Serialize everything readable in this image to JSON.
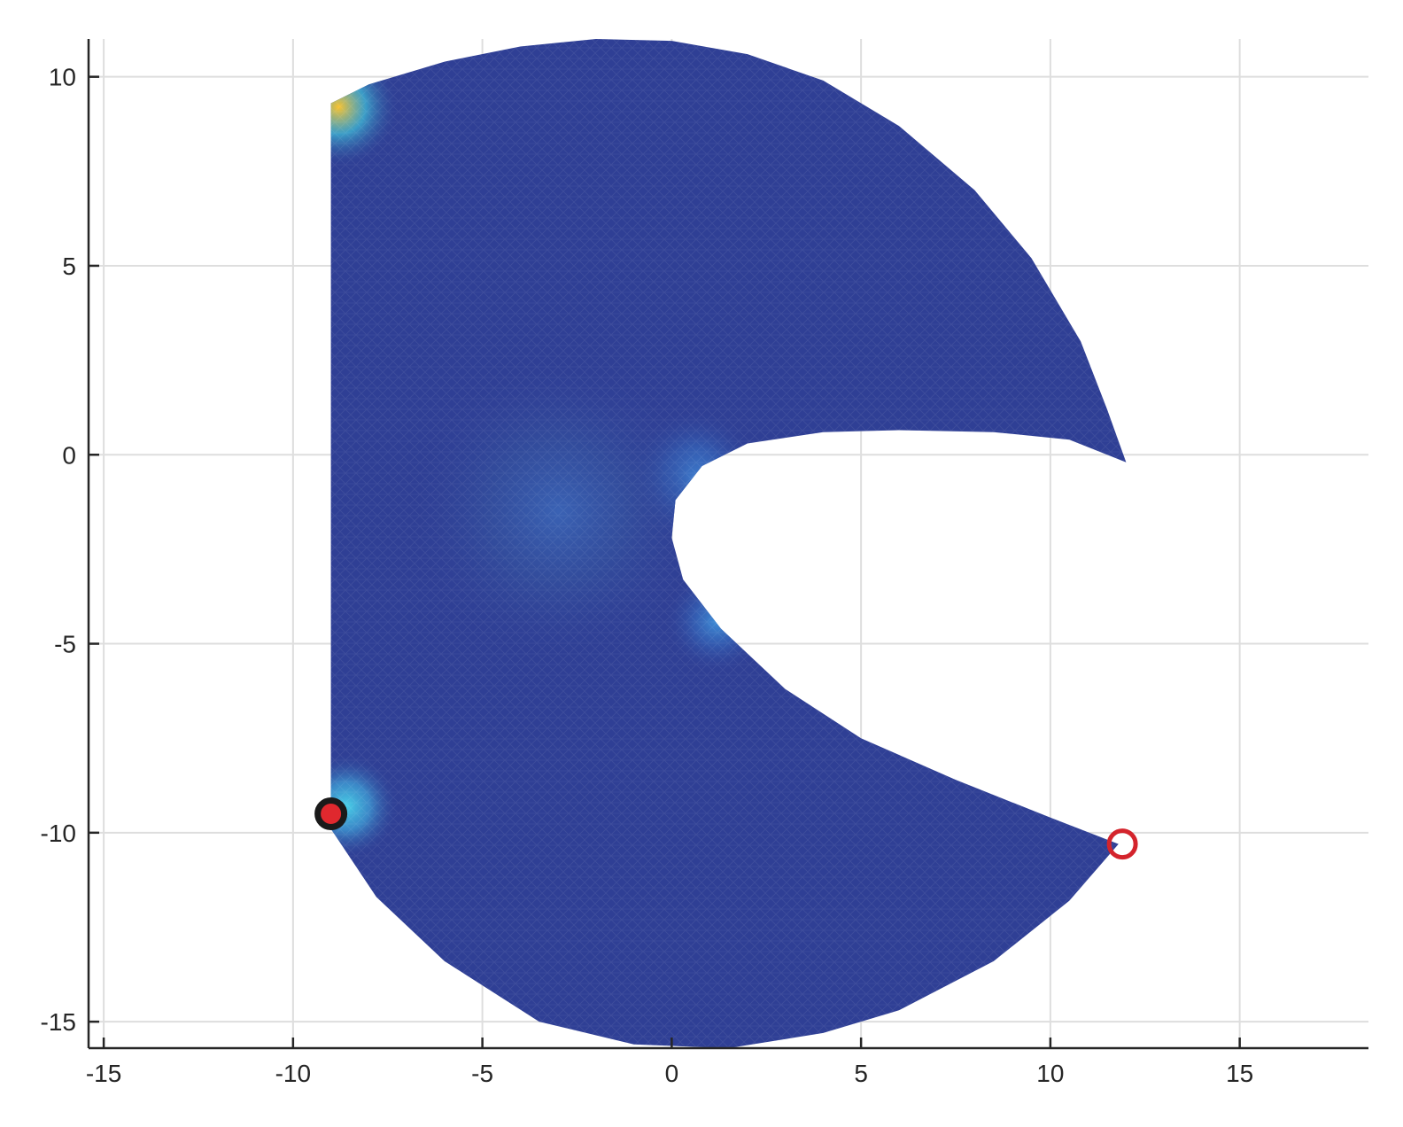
{
  "chart_data": {
    "type": "scatter",
    "title": "",
    "xlabel": "",
    "ylabel": "",
    "xlim": [
      -15.4,
      18.4
    ],
    "ylim": [
      -15.7,
      11.0
    ],
    "grid": true,
    "x_ticks": [
      -15,
      -10,
      -5,
      0,
      5,
      10,
      15
    ],
    "y_ticks": [
      -15,
      -10,
      -5,
      0,
      5,
      10
    ],
    "x_tick_labels": [
      "-15",
      "-10",
      "-5",
      "0",
      "5",
      "10",
      "15"
    ],
    "y_tick_labels": [
      "-15",
      "-10",
      "-5",
      "0",
      "5",
      "10"
    ],
    "domain": {
      "description_colormap": "parula-like field on triangular mesh",
      "base_color": "#2f3f95",
      "outline": [
        [
          -9.0,
          9.3
        ],
        [
          -8.0,
          9.8
        ],
        [
          -6.0,
          10.4
        ],
        [
          -4.0,
          10.8
        ],
        [
          -2.0,
          11.0
        ],
        [
          0.0,
          10.95
        ],
        [
          2.0,
          10.6
        ],
        [
          4.0,
          9.9
        ],
        [
          6.0,
          8.7
        ],
        [
          8.0,
          7.0
        ],
        [
          9.5,
          5.2
        ],
        [
          10.8,
          3.0
        ],
        [
          11.5,
          1.2
        ],
        [
          12.0,
          -0.2
        ],
        [
          10.5,
          0.4
        ],
        [
          8.5,
          0.6
        ],
        [
          6.0,
          0.65
        ],
        [
          4.0,
          0.6
        ],
        [
          2.0,
          0.3
        ],
        [
          0.8,
          -0.3
        ],
        [
          0.1,
          -1.2
        ],
        [
          0.0,
          -2.2
        ],
        [
          0.3,
          -3.3
        ],
        [
          1.3,
          -4.6
        ],
        [
          3.0,
          -6.2
        ],
        [
          5.0,
          -7.5
        ],
        [
          7.5,
          -8.6
        ],
        [
          10.0,
          -9.6
        ],
        [
          11.8,
          -10.3
        ],
        [
          10.5,
          -11.8
        ],
        [
          8.5,
          -13.4
        ],
        [
          6.0,
          -14.7
        ],
        [
          4.0,
          -15.3
        ],
        [
          1.5,
          -15.7
        ],
        [
          -1.0,
          -15.6
        ],
        [
          -3.5,
          -15.0
        ],
        [
          -6.0,
          -13.4
        ],
        [
          -7.8,
          -11.7
        ],
        [
          -9.0,
          -9.9
        ],
        [
          -9.0,
          9.3
        ]
      ],
      "hotspots": [
        {
          "x": -8.8,
          "y": 9.2,
          "r": 1.6,
          "color_core": "#f9c22e",
          "color_mid": "#3fbcd8"
        },
        {
          "x": -8.6,
          "y": -9.3,
          "r": 1.4,
          "color_core": "#48d0e8",
          "color_mid": "#3fa0d8"
        },
        {
          "x": 0.6,
          "y": -0.6,
          "r": 1.8,
          "color_core": "#3f7fd0",
          "color_mid": "#3563b8"
        },
        {
          "x": 1.2,
          "y": -4.4,
          "r": 1.4,
          "color_core": "#3f8fd8",
          "color_mid": "#3563b8"
        },
        {
          "x": -3.0,
          "y": -1.5,
          "r": 4.0,
          "color_core": "#3a62b4",
          "color_mid": "#34519f"
        }
      ]
    },
    "markers": [
      {
        "name": "source-point",
        "x": -9.0,
        "y": -9.5,
        "fill": "#e0282e",
        "stroke": "#1a1a1a",
        "style": "filled-circle"
      },
      {
        "name": "target-point",
        "x": 11.9,
        "y": -10.3,
        "fill": "none",
        "stroke": "#d4242c",
        "style": "open-circle"
      }
    ]
  }
}
